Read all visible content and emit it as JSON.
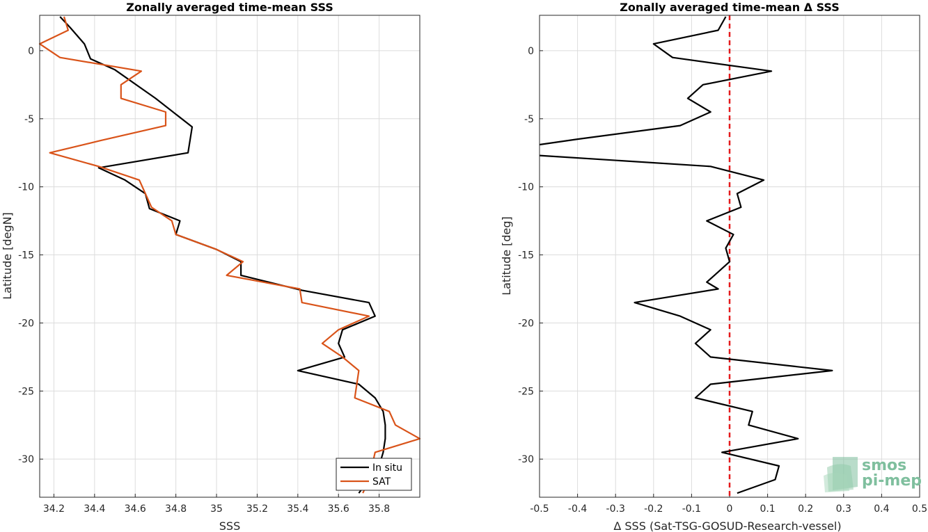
{
  "chart_data": [
    {
      "type": "line",
      "title": "Zonally averaged time-mean SSS",
      "xlabel": "SSS",
      "ylabel": "Latitude [degN]",
      "xlim": [
        34.13,
        36.0
      ],
      "ylim": [
        -32.8,
        2.6
      ],
      "xticks": [
        34.2,
        34.4,
        34.6,
        34.8,
        35,
        35.2,
        35.4,
        35.6,
        35.8
      ],
      "xtick_labels": [
        "34.2",
        "34.4",
        "34.6",
        "34.8",
        "35",
        "35.2",
        "35.4",
        "35.6",
        "35.8"
      ],
      "yticks": [
        0,
        -5,
        -10,
        -15,
        -20,
        -25,
        -30
      ],
      "ytick_labels": [
        "0",
        "-5",
        "-10",
        "-15",
        "-20",
        "-25",
        "-30"
      ],
      "grid": true,
      "legend": "bottom-right",
      "series": [
        {
          "name": "In situ",
          "color": "#000000",
          "points": [
            [
              34.23,
              2.5
            ],
            [
              34.28,
              1.7
            ],
            [
              34.35,
              0.5
            ],
            [
              34.38,
              -0.6
            ],
            [
              34.5,
              -1.4
            ],
            [
              34.7,
              -3.5
            ],
            [
              34.88,
              -5.6
            ],
            [
              34.86,
              -7.5
            ],
            [
              34.42,
              -8.6
            ],
            [
              34.55,
              -9.5
            ],
            [
              34.65,
              -10.5
            ],
            [
              34.67,
              -11.6
            ],
            [
              34.82,
              -12.5
            ],
            [
              34.8,
              -13.5
            ],
            [
              35.0,
              -14.6
            ],
            [
              35.12,
              -15.5
            ],
            [
              35.12,
              -16.5
            ],
            [
              35.42,
              -17.6
            ],
            [
              35.75,
              -18.5
            ],
            [
              35.78,
              -19.5
            ],
            [
              35.62,
              -20.5
            ],
            [
              35.6,
              -21.5
            ],
            [
              35.63,
              -22.5
            ],
            [
              35.4,
              -23.5
            ],
            [
              35.7,
              -24.5
            ],
            [
              35.78,
              -25.5
            ],
            [
              35.82,
              -26.5
            ],
            [
              35.83,
              -27.5
            ],
            [
              35.83,
              -28.5
            ],
            [
              35.82,
              -29.5
            ],
            [
              35.8,
              -30.5
            ],
            [
              35.75,
              -31.5
            ],
            [
              35.7,
              -32.5
            ]
          ]
        },
        {
          "name": "SAT",
          "color": "#d95319",
          "points": [
            [
              34.25,
              2.5
            ],
            [
              34.27,
              1.5
            ],
            [
              34.13,
              0.5
            ],
            [
              34.23,
              -0.5
            ],
            [
              34.63,
              -1.5
            ],
            [
              34.53,
              -2.5
            ],
            [
              34.53,
              -3.5
            ],
            [
              34.75,
              -4.5
            ],
            [
              34.75,
              -5.5
            ],
            [
              34.43,
              -6.6
            ],
            [
              34.18,
              -7.5
            ],
            [
              34.42,
              -8.5
            ],
            [
              34.62,
              -9.5
            ],
            [
              34.68,
              -11.5
            ],
            [
              34.78,
              -12.5
            ],
            [
              34.8,
              -13.5
            ],
            [
              35.0,
              -14.6
            ],
            [
              35.13,
              -15.5
            ],
            [
              35.05,
              -16.5
            ],
            [
              35.41,
              -17.5
            ],
            [
              35.42,
              -18.5
            ],
            [
              35.75,
              -19.5
            ],
            [
              35.6,
              -20.5
            ],
            [
              35.52,
              -21.5
            ],
            [
              35.62,
              -22.5
            ],
            [
              35.7,
              -23.5
            ],
            [
              35.68,
              -25.5
            ],
            [
              35.85,
              -26.5
            ],
            [
              35.88,
              -27.5
            ],
            [
              36.0,
              -28.5
            ],
            [
              35.78,
              -29.5
            ],
            [
              35.75,
              -31.5
            ],
            [
              35.72,
              -32.5
            ]
          ]
        }
      ]
    },
    {
      "type": "line",
      "title": "Zonally averaged time-mean Δ SSS",
      "xlabel": "Δ SSS (Sat-TSG-GOSUD-Research-vessel)",
      "ylabel": "Latitude [deg]",
      "xlim": [
        -0.5,
        0.5
      ],
      "ylim": [
        -32.8,
        2.6
      ],
      "xticks": [
        -0.5,
        -0.4,
        -0.3,
        -0.2,
        -0.1,
        0,
        0.1,
        0.2,
        0.3,
        0.4,
        0.5
      ],
      "xtick_labels": [
        "-0.5",
        "-0.4",
        "-0.3",
        "-0.2",
        "-0.1",
        "0",
        "0.1",
        "0.2",
        "0.3",
        "0.4",
        "0.5"
      ],
      "yticks": [
        0,
        -5,
        -10,
        -15,
        -20,
        -25,
        -30
      ],
      "ytick_labels": [
        "0",
        "-5",
        "-10",
        "-15",
        "-20",
        "-25",
        "-30"
      ],
      "grid": true,
      "reference_line": {
        "x": 0,
        "color": "#e41a1c",
        "style": "dashed"
      },
      "series": [
        {
          "color": "#000000",
          "points": [
            [
              -0.01,
              2.5
            ],
            [
              -0.03,
              1.5
            ],
            [
              -0.2,
              0.5
            ],
            [
              -0.15,
              -0.5
            ],
            [
              0.11,
              -1.5
            ],
            [
              -0.07,
              -2.5
            ],
            [
              -0.11,
              -3.5
            ],
            [
              -0.05,
              -4.5
            ],
            [
              -0.13,
              -5.5
            ],
            [
              -0.4,
              -6.5
            ],
            [
              -0.5,
              -6.9
            ]
          ]
        },
        {
          "color": "#000000",
          "points": [
            [
              -0.5,
              -7.7
            ],
            [
              -0.05,
              -8.5
            ],
            [
              0.09,
              -9.5
            ],
            [
              0.02,
              -10.5
            ],
            [
              0.03,
              -11.5
            ],
            [
              -0.06,
              -12.5
            ],
            [
              0.01,
              -13.5
            ],
            [
              -0.01,
              -14.5
            ],
            [
              0.0,
              -15.5
            ],
            [
              -0.04,
              -16.5
            ],
            [
              -0.06,
              -17
            ],
            [
              -0.03,
              -17.5
            ],
            [
              -0.25,
              -18.5
            ],
            [
              -0.13,
              -19.5
            ],
            [
              -0.05,
              -20.5
            ],
            [
              -0.09,
              -21.5
            ],
            [
              -0.05,
              -22.5
            ],
            [
              0.27,
              -23.5
            ],
            [
              -0.05,
              -24.5
            ],
            [
              -0.09,
              -25.5
            ],
            [
              0.06,
              -26.5
            ],
            [
              0.05,
              -27.5
            ],
            [
              0.18,
              -28.5
            ],
            [
              -0.02,
              -29.5
            ],
            [
              0.13,
              -30.5
            ],
            [
              0.12,
              -31.5
            ],
            [
              0.02,
              -32.5
            ]
          ]
        }
      ]
    }
  ],
  "legend": {
    "items": [
      "In situ",
      "SAT"
    ]
  },
  "logo": {
    "line1": "smos",
    "line2": "pi-mep"
  }
}
